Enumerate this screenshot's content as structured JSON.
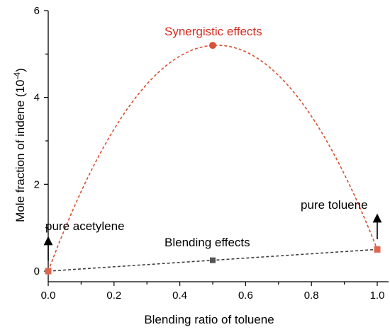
{
  "chart_data": {
    "type": "line",
    "xlabel": "Blending ratio of toluene",
    "ylabel_main": "Mole fraction of indene (10",
    "ylabel_exp": "-4",
    "ylabel_close": ")",
    "xlim": [
      0.0,
      1.0
    ],
    "ylim": [
      0,
      6
    ],
    "x_ticks": [
      "0.0",
      "0.2",
      "0.4",
      "0.6",
      "0.8",
      "1.0"
    ],
    "y_ticks": [
      "0",
      "2",
      "4",
      "6"
    ],
    "grid": false,
    "series": [
      {
        "style": "dashed curve with circle markers",
        "color": "#d9502f",
        "x": [
          0.0,
          0.5,
          1.0
        ],
        "y": [
          0.0,
          5.2,
          0.5
        ]
      },
      {
        "style": "dashed line with square markers",
        "color": "#404040",
        "x": [
          0.0,
          0.5,
          1.0
        ],
        "y": [
          0.0,
          0.25,
          0.5
        ]
      }
    ],
    "annotations": {
      "synergistic": "Synergistic effects",
      "blending": "Blending effects",
      "pure_acetylene": "pure acetylene",
      "pure_toluene": "pure toluene"
    },
    "endpoint_marker_color": "#e0654f",
    "peak_marker_color": "#d9503c",
    "mid_marker_color": "#555555"
  }
}
